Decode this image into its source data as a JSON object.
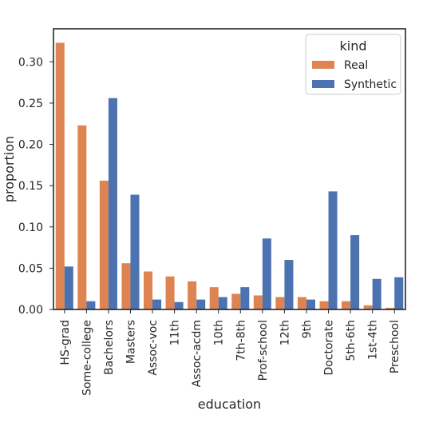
{
  "chart_data": {
    "type": "bar",
    "title": "",
    "xlabel": "education",
    "ylabel": "proportion",
    "ylim": [
      0,
      0.34
    ],
    "yticks": [
      0.0,
      0.05,
      0.1,
      0.15,
      0.2,
      0.25,
      0.3
    ],
    "ytick_labels": [
      "0.00",
      "0.05",
      "0.10",
      "0.15",
      "0.20",
      "0.25",
      "0.30"
    ],
    "grid": false,
    "legend": {
      "title": "kind",
      "placement": "top-right"
    },
    "categories": [
      "HS-grad",
      "Some-college",
      "Bachelors",
      "Masters",
      "Assoc-voc",
      "11th",
      "Assoc-acdm",
      "10th",
      "7th-8th",
      "Prof-school",
      "12th",
      "9th",
      "Doctorate",
      "5th-6th",
      "1st-4th",
      "Preschool"
    ],
    "series": [
      {
        "name": "Real",
        "color": "#dd8452",
        "values": [
          0.323,
          0.223,
          0.156,
          0.056,
          0.046,
          0.04,
          0.034,
          0.027,
          0.019,
          0.017,
          0.015,
          0.015,
          0.01,
          0.01,
          0.005,
          0.002
        ]
      },
      {
        "name": "Synthetic",
        "color": "#4c72b0",
        "values": [
          0.052,
          0.01,
          0.256,
          0.139,
          0.012,
          0.009,
          0.012,
          0.015,
          0.027,
          0.086,
          0.06,
          0.012,
          0.143,
          0.09,
          0.037,
          0.039
        ]
      }
    ]
  }
}
